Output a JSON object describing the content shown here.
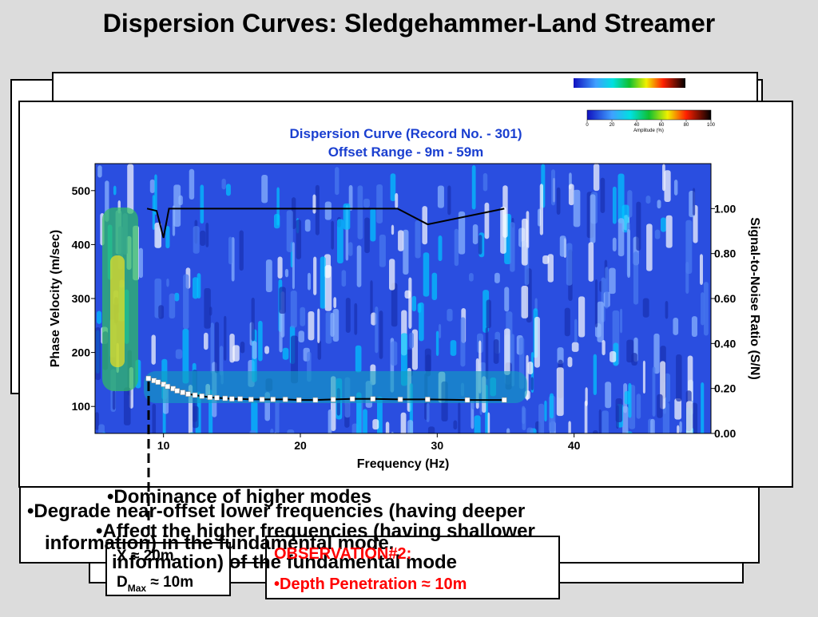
{
  "slide_title": "Dispersion Curves: Sledgehammer-Land Streamer",
  "chart_data": {
    "type": "line",
    "title": [
      "Dispersion Curve (Record No. - 301)",
      "Offset Range - 9m - 59m"
    ],
    "x_label": "Frequency (Hz)",
    "y_label": "Phase Velocity (m/sec)",
    "y2_label": "Signal-to-Noise Ratio (S/N)",
    "xlim": [
      5,
      50
    ],
    "xticks": [
      10,
      20,
      30,
      40
    ],
    "ylim": [
      50,
      550
    ],
    "yticks": [
      100,
      200,
      300,
      400,
      500
    ],
    "y2lim": [
      0,
      1.2
    ],
    "y2ticks": [
      {
        "value": 0,
        "label": "0.00"
      },
      {
        "value": 0.2,
        "label": "0.20"
      },
      {
        "value": 0.4,
        "label": "0.40"
      },
      {
        "value": 0.6,
        "label": "0.60"
      },
      {
        "value": 0.8,
        "label": "0.80"
      },
      {
        "value": 1,
        "label": "1.00"
      }
    ],
    "colorbar": {
      "ticks": [
        0,
        20,
        40,
        60,
        80,
        100
      ],
      "label": "Amplitude (%)"
    },
    "series": [
      {
        "color": "#000000",
        "markers": true,
        "x": [
          8.9,
          9.3,
          9.6,
          10.0,
          10.3,
          10.7,
          11.0,
          11.4,
          11.8,
          12.3,
          12.8,
          13.4,
          13.9,
          14.5,
          15.0,
          15.6,
          16.4,
          17.2,
          18.0,
          18.9,
          19.9,
          21.1,
          22.4,
          23.8,
          25.3,
          27.3,
          29.3,
          32.2,
          34.9
        ],
        "values": [
          152,
          148,
          145,
          141,
          137,
          133,
          129,
          126,
          123,
          121,
          119,
          117,
          116,
          115,
          114,
          114,
          113,
          113,
          113,
          113,
          112,
          112,
          113,
          114,
          114,
          113,
          113,
          112,
          112
        ]
      },
      {
        "color": "#000000",
        "markers": false,
        "axis": "y2",
        "x": [
          8.8,
          9.5,
          10.0,
          10.4,
          27.1,
          29.3,
          34.9
        ],
        "values": [
          1.0,
          0.99,
          0.87,
          1.0,
          1.0,
          0.93,
          1.0
        ]
      }
    ]
  },
  "boxes": {
    "higher_modes": [
      "•Dominance of higher modes",
      "•Affect the higher frequencies (having shallower",
      "information) of the fundamental mode"
    ],
    "degrade": [
      "•Degrade near-offset lower frequencies (having deeper",
      "information) in the fundamental mode."
    ],
    "offset": "X ≈ 20m",
    "dmax": {
      "symbol": "D",
      "subscript": "Max",
      "value": " ≈ 10m"
    },
    "observation": {
      "title": "OBSERVATION#2:",
      "text": "•Depth Penetration ≈ 10m"
    }
  }
}
